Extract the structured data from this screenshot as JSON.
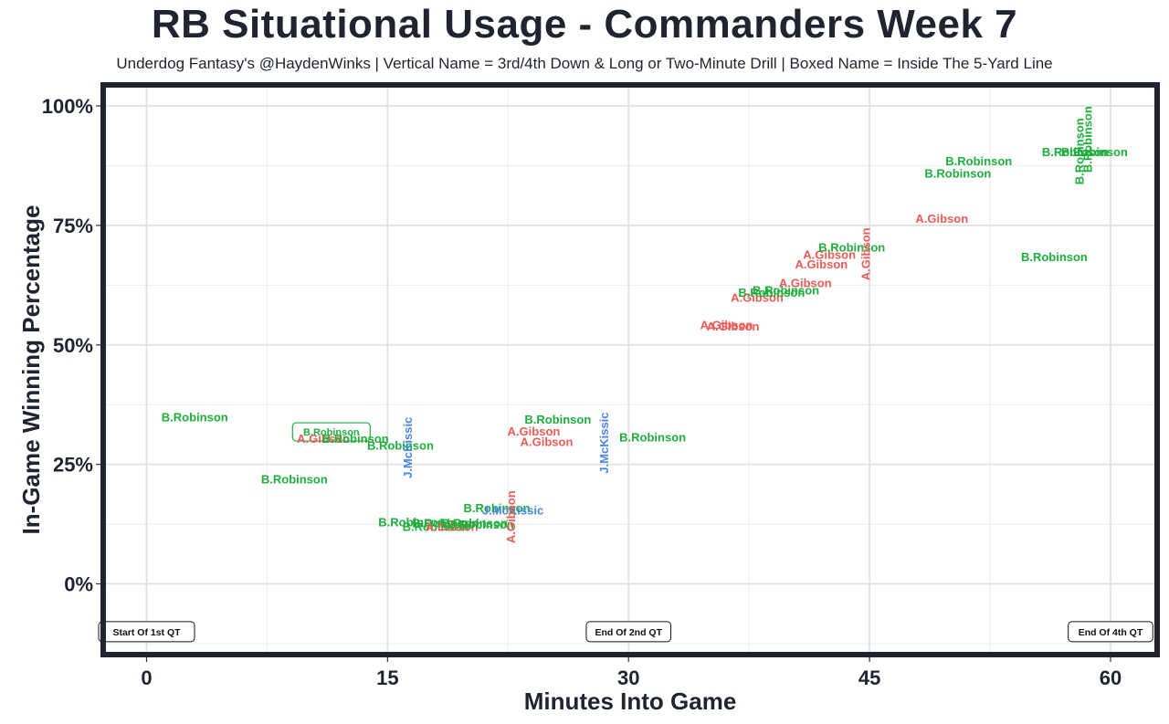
{
  "chart_data": {
    "type": "scatter",
    "title": "RB Situational Usage - Commanders Week 7",
    "subtitle": "Underdog Fantasy's @HaydenWinks | Vertical Name = 3rd/4th Down & Long or Two-Minute Drill | Boxed Name = Inside The 5-Yard Line",
    "xlabel": "Minutes Into Game",
    "ylabel": "In-Game Winning Percentage",
    "xlim": [
      -2.7,
      62.9
    ],
    "ylim": [
      -14.8,
      104.4
    ],
    "xticks": [
      0,
      15,
      30,
      45,
      60
    ],
    "xtick_labels": [
      "0",
      "15",
      "30",
      "45",
      "60"
    ],
    "yticks": [
      0,
      25,
      50,
      75,
      100
    ],
    "ytick_labels": [
      "0%",
      "25%",
      "50%",
      "75%",
      "100%"
    ],
    "colors": {
      "B.Robinson": "#1fae3c",
      "A.Gibson": "#ec5b56",
      "J.McKissic": "#4a86e8"
    },
    "annotations": [
      {
        "text": "Start Of 1st QT",
        "x": 0,
        "y": -10
      },
      {
        "text": "End Of 2nd QT",
        "x": 30,
        "y": -10
      },
      {
        "text": "End Of 4th QT",
        "x": 60,
        "y": -10
      }
    ],
    "points": [
      {
        "player": "B.Robinson",
        "x": 3.0,
        "y": 35.0,
        "vertical": false,
        "boxed": false
      },
      {
        "player": "B.Robinson",
        "x": 9.2,
        "y": 22.0,
        "vertical": false,
        "boxed": false
      },
      {
        "player": "B.Robinson",
        "x": 11.5,
        "y": 31.8,
        "vertical": false,
        "boxed": true
      },
      {
        "player": "A.Gibson",
        "x": 11.0,
        "y": 30.5,
        "vertical": false,
        "boxed": false
      },
      {
        "player": "B.Robinson",
        "x": 13.0,
        "y": 30.5,
        "vertical": false,
        "boxed": false
      },
      {
        "player": "B.Robinson",
        "x": 15.8,
        "y": 29.0,
        "vertical": false,
        "boxed": false
      },
      {
        "player": "J.McKissic",
        "x": 16.3,
        "y": 28.5,
        "vertical": true,
        "boxed": false
      },
      {
        "player": "B.Robinson",
        "x": 16.5,
        "y": 13.0,
        "vertical": false,
        "boxed": false
      },
      {
        "player": "B.Robinson",
        "x": 18.0,
        "y": 12.0,
        "vertical": false,
        "boxed": false
      },
      {
        "player": "B.Robinson",
        "x": 18.6,
        "y": 12.8,
        "vertical": false,
        "boxed": false
      },
      {
        "player": "A.Gibson",
        "x": 19.0,
        "y": 12.0,
        "vertical": false,
        "boxed": false
      },
      {
        "player": "B.Robinson",
        "x": 20.4,
        "y": 12.8,
        "vertical": false,
        "boxed": false
      },
      {
        "player": "B.Robinson",
        "x": 20.8,
        "y": 12.5,
        "vertical": false,
        "boxed": false
      },
      {
        "player": "B.Robinson",
        "x": 21.8,
        "y": 16.0,
        "vertical": false,
        "boxed": false
      },
      {
        "player": "J.McKissic",
        "x": 22.8,
        "y": 15.5,
        "vertical": false,
        "boxed": false
      },
      {
        "player": "A.Gibson",
        "x": 22.7,
        "y": 14.0,
        "vertical": true,
        "boxed": false
      },
      {
        "player": "A.Gibson",
        "x": 24.1,
        "y": 32.0,
        "vertical": false,
        "boxed": false
      },
      {
        "player": "B.Robinson",
        "x": 25.6,
        "y": 34.5,
        "vertical": false,
        "boxed": false
      },
      {
        "player": "A.Gibson",
        "x": 24.9,
        "y": 29.8,
        "vertical": false,
        "boxed": false
      },
      {
        "player": "J.McKissic",
        "x": 28.5,
        "y": 29.5,
        "vertical": true,
        "boxed": false
      },
      {
        "player": "B.Robinson",
        "x": 31.5,
        "y": 30.8,
        "vertical": false,
        "boxed": false
      },
      {
        "player": "A.Gibson",
        "x": 36.1,
        "y": 54.3,
        "vertical": false,
        "boxed": false
      },
      {
        "player": "A.Gibson",
        "x": 36.5,
        "y": 54.0,
        "vertical": false,
        "boxed": false
      },
      {
        "player": "A.Gibson",
        "x": 38.0,
        "y": 60.0,
        "vertical": false,
        "boxed": false
      },
      {
        "player": "B.Robinson",
        "x": 38.9,
        "y": 61.0,
        "vertical": false,
        "boxed": false
      },
      {
        "player": "B.Robinson",
        "x": 39.8,
        "y": 61.5,
        "vertical": false,
        "boxed": false
      },
      {
        "player": "A.Gibson",
        "x": 41.0,
        "y": 63.0,
        "vertical": false,
        "boxed": false
      },
      {
        "player": "A.Gibson",
        "x": 42.0,
        "y": 67.0,
        "vertical": false,
        "boxed": false
      },
      {
        "player": "A.Gibson",
        "x": 42.5,
        "y": 69.0,
        "vertical": false,
        "boxed": false
      },
      {
        "player": "B.Robinson",
        "x": 43.9,
        "y": 70.5,
        "vertical": false,
        "boxed": false
      },
      {
        "player": "A.Gibson",
        "x": 44.8,
        "y": 69.0,
        "vertical": true,
        "boxed": false
      },
      {
        "player": "A.Gibson",
        "x": 49.5,
        "y": 76.5,
        "vertical": false,
        "boxed": false
      },
      {
        "player": "B.Robinson",
        "x": 50.5,
        "y": 86.0,
        "vertical": false,
        "boxed": false
      },
      {
        "player": "B.Robinson",
        "x": 51.8,
        "y": 88.5,
        "vertical": false,
        "boxed": false
      },
      {
        "player": "B.Robinson",
        "x": 56.5,
        "y": 68.5,
        "vertical": false,
        "boxed": false
      },
      {
        "player": "B.Robinson",
        "x": 57.8,
        "y": 90.5,
        "vertical": false,
        "boxed": false
      },
      {
        "player": "B.Robinson",
        "x": 58.1,
        "y": 90.5,
        "vertical": true,
        "boxed": false
      },
      {
        "player": "B.Robinson",
        "x": 58.6,
        "y": 93.0,
        "vertical": true,
        "boxed": false
      },
      {
        "player": "B.Robinson",
        "x": 59.0,
        "y": 90.5,
        "vertical": false,
        "boxed": false
      }
    ]
  }
}
